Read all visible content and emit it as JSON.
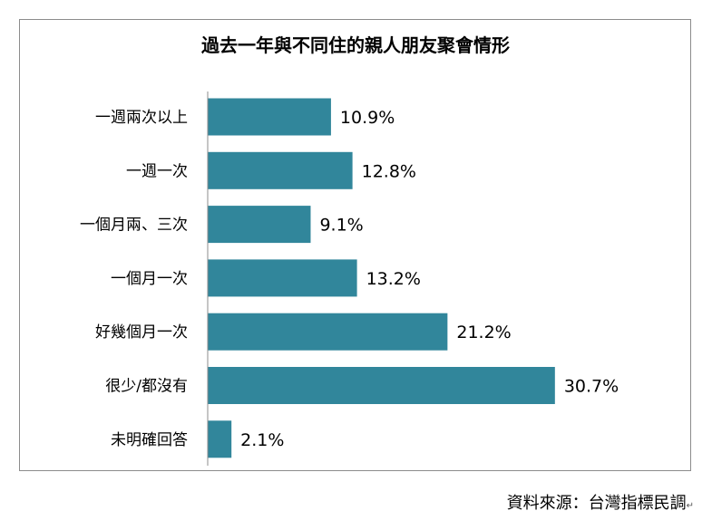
{
  "chart_data": {
    "type": "bar",
    "orientation": "horizontal",
    "title": "過去一年與不同住的親人朋友聚會情形",
    "categories": [
      "一週兩次以上",
      "一週一次",
      "一個月兩、三次",
      "一個月一次",
      "好幾個月一次",
      "很少/都沒有",
      "未明確回答"
    ],
    "values": [
      10.9,
      12.8,
      9.1,
      13.2,
      21.2,
      30.7,
      2.1
    ],
    "value_labels": [
      "10.9%",
      "12.8%",
      "9.1%",
      "13.2%",
      "21.2%",
      "30.7%",
      "2.1%"
    ],
    "unit": "%",
    "xlim": [
      0,
      35
    ],
    "grid": false,
    "legend": "none",
    "bar_color": "#31869b"
  },
  "source": {
    "text": "資料來源：台灣指標民調",
    "mark": "↵"
  }
}
